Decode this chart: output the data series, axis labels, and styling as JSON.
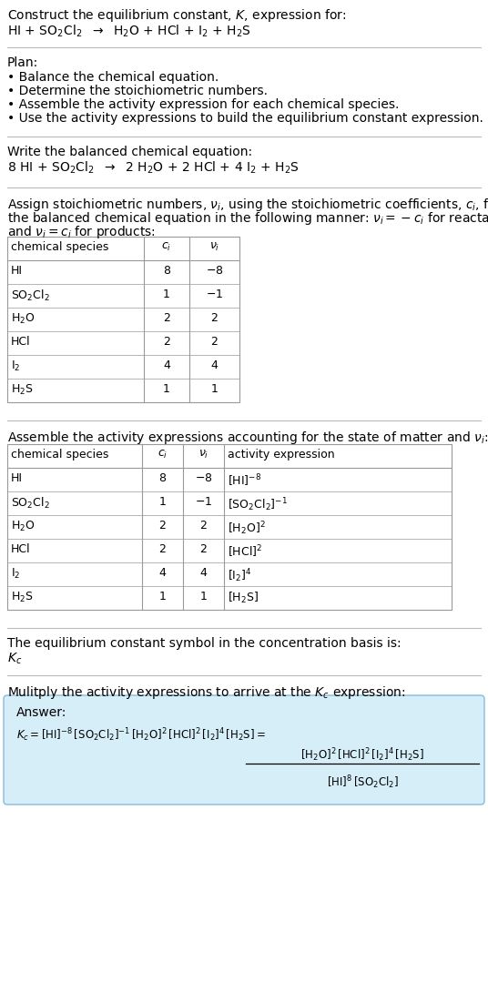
{
  "title_line1": "Construct the equilibrium constant, $K$, expression for:",
  "reaction_unbalanced": "HI + SO$_2$Cl$_2$  $\\rightarrow$  H$_2$O + HCl + I$_2$ + H$_2$S",
  "plan_header": "Plan:",
  "plan_items": [
    "• Balance the chemical equation.",
    "• Determine the stoichiometric numbers.",
    "• Assemble the activity expression for each chemical species.",
    "• Use the activity expressions to build the equilibrium constant expression."
  ],
  "balanced_header": "Write the balanced chemical equation:",
  "reaction_balanced": "8 HI + SO$_2$Cl$_2$  $\\rightarrow$  2 H$_2$O + 2 HCl + 4 I$_2$ + H$_2$S",
  "stoich_header_line1": "Assign stoichiometric numbers, $\\nu_i$, using the stoichiometric coefficients, $c_i$, from",
  "stoich_header_line2": "the balanced chemical equation in the following manner: $\\nu_i = -c_i$ for reactants",
  "stoich_header_line3": "and $\\nu_i = c_i$ for products:",
  "table1_headers": [
    "chemical species",
    "$c_i$",
    "$\\nu_i$"
  ],
  "table1_rows": [
    [
      "HI",
      "8",
      "$-8$"
    ],
    [
      "SO$_2$Cl$_2$",
      "1",
      "$-1$"
    ],
    [
      "H$_2$O",
      "2",
      "2"
    ],
    [
      "HCl",
      "2",
      "2"
    ],
    [
      "I$_2$",
      "4",
      "4"
    ],
    [
      "H$_2$S",
      "1",
      "1"
    ]
  ],
  "activity_header": "Assemble the activity expressions accounting for the state of matter and $\\nu_i$:",
  "table2_headers": [
    "chemical species",
    "$c_i$",
    "$\\nu_i$",
    "activity expression"
  ],
  "table2_rows": [
    [
      "HI",
      "8",
      "$-8$",
      "$[\\mathrm{HI}]^{-8}$"
    ],
    [
      "SO$_2$Cl$_2$",
      "1",
      "$-1$",
      "$[\\mathrm{SO_2Cl_2}]^{-1}$"
    ],
    [
      "H$_2$O",
      "2",
      "2",
      "$[\\mathrm{H_2O}]^{2}$"
    ],
    [
      "HCl",
      "2",
      "2",
      "$[\\mathrm{HCl}]^{2}$"
    ],
    [
      "I$_2$",
      "4",
      "4",
      "$[\\mathrm{I_2}]^{4}$"
    ],
    [
      "H$_2$S",
      "1",
      "1",
      "$[\\mathrm{H_2S}]$"
    ]
  ],
  "kc_header": "The equilibrium constant symbol in the concentration basis is:",
  "kc_symbol": "$K_c$",
  "multiply_header": "Mulitply the activity expressions to arrive at the $K_c$ expression:",
  "answer_label": "Answer:",
  "bg_color": "#ffffff",
  "answer_box_color": "#d6eef8",
  "answer_box_border": "#88bbdd",
  "table_border_color": "#999999",
  "separator_color": "#bbbbbb",
  "font_size": 10.0,
  "small_font_size": 9.0
}
